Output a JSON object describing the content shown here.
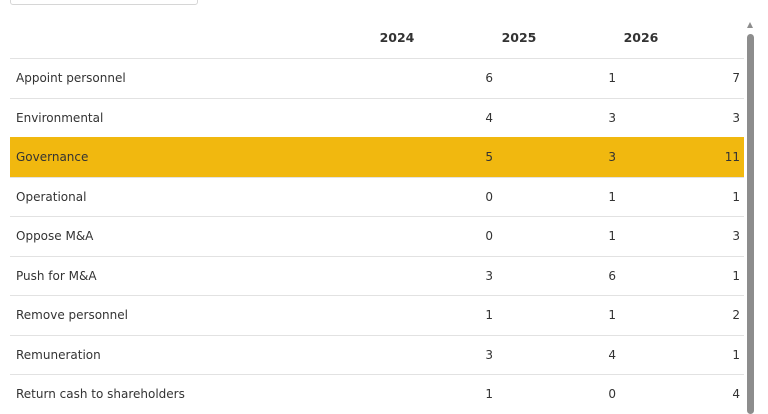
{
  "table": {
    "columns": [
      "2024",
      "2025",
      "2026"
    ],
    "rows": [
      {
        "label": "Appoint personnel",
        "values": [
          6,
          1,
          7
        ]
      },
      {
        "label": "Environmental",
        "values": [
          4,
          3,
          3
        ]
      },
      {
        "label": "Governance",
        "values": [
          5,
          3,
          11
        ],
        "highlighted": true
      },
      {
        "label": "Operational",
        "values": [
          0,
          1,
          1
        ]
      },
      {
        "label": "Oppose M&A",
        "values": [
          0,
          1,
          3
        ]
      },
      {
        "label": "Push for M&A",
        "values": [
          3,
          6,
          1
        ]
      },
      {
        "label": "Remove personnel",
        "values": [
          1,
          1,
          2
        ]
      },
      {
        "label": "Remuneration",
        "values": [
          3,
          4,
          1
        ]
      },
      {
        "label": "Return cash to shareholders",
        "values": [
          1,
          0,
          4
        ]
      }
    ]
  }
}
